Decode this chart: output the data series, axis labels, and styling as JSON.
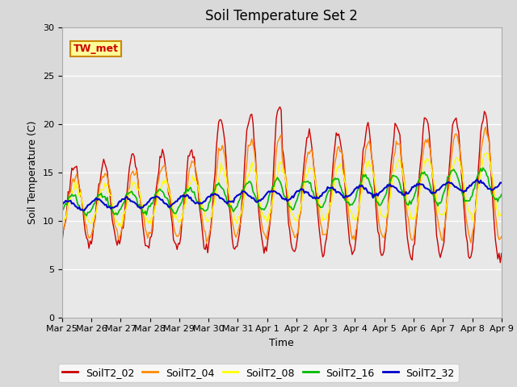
{
  "title": "Soil Temperature Set 2",
  "xlabel": "Time",
  "ylabel": "Soil Temperature (C)",
  "ylim": [
    0,
    30
  ],
  "yticks": [
    0,
    5,
    10,
    15,
    20,
    25,
    30
  ],
  "fig_bg_color": "#d9d9d9",
  "plot_bg_color": "#e8e8e8",
  "legend_labels": [
    "SoilT2_02",
    "SoilT2_04",
    "SoilT2_08",
    "SoilT2_16",
    "SoilT2_32"
  ],
  "line_colors": [
    "#cc0000",
    "#ff8800",
    "#ffff00",
    "#00bb00",
    "#0000cc"
  ],
  "annotation_text": "TW_met",
  "annotation_color": "#cc0000",
  "annotation_bg": "#ffff99",
  "annotation_border": "#cc8800",
  "x_labels": [
    "Mar 25",
    "Mar 26",
    "Mar 27",
    "Mar 28",
    "Mar 29",
    "Mar 30",
    "Mar 31",
    "Apr 1",
    "Apr 2",
    "Apr 3",
    "Apr 4",
    "Apr 5",
    "Apr 6",
    "Apr 7",
    "Apr 8",
    "Apr 9"
  ],
  "title_fontsize": 12,
  "axis_fontsize": 9,
  "tick_fontsize": 8,
  "legend_fontsize": 9
}
